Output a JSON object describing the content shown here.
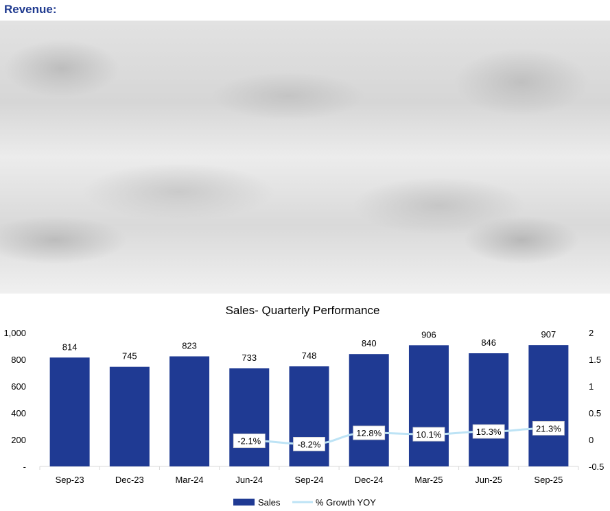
{
  "page": {
    "heading": "Revenue:"
  },
  "chart_data": {
    "type": "bar",
    "title": "Sales- Quarterly Performance",
    "categories": [
      "Sep-23",
      "Dec-23",
      "Mar-24",
      "Jun-24",
      "Sep-24",
      "Dec-24",
      "Mar-25",
      "Jun-25",
      "Sep-25"
    ],
    "series": [
      {
        "name": "Sales",
        "type": "bar",
        "axis": "left",
        "values": [
          814,
          745,
          823,
          733,
          748,
          840,
          906,
          846,
          907
        ],
        "labels": [
          "814",
          "745",
          "823",
          "733",
          "748",
          "840",
          "906",
          "846",
          "907"
        ]
      },
      {
        "name": "% Growth YOY",
        "type": "line",
        "axis": "right",
        "values": [
          null,
          null,
          null,
          -0.021,
          -0.082,
          0.128,
          0.101,
          0.153,
          0.213
        ],
        "labels": [
          "",
          "",
          "",
          "-2.1%",
          "-8.2%",
          "12.8%",
          "10.1%",
          "15.3%",
          "21.3%"
        ]
      }
    ],
    "y_left": {
      "ylim": [
        0,
        1000
      ],
      "ticks": [
        0,
        200,
        400,
        600,
        800,
        1000
      ],
      "tick_labels": [
        "-",
        "200",
        "400",
        "600",
        "800",
        "1,000"
      ]
    },
    "y_right": {
      "ylim": [
        -0.5,
        2
      ],
      "ticks": [
        -0.5,
        0,
        0.5,
        1,
        1.5,
        2
      ],
      "tick_labels": [
        "-0.5",
        "0",
        "0.5",
        "1",
        "1.5",
        "2"
      ]
    },
    "grid": false,
    "legend": "bottom",
    "colors": {
      "bar": "#1f3a93",
      "line": "#bde3f5",
      "heading": "#1f3a8f"
    }
  }
}
